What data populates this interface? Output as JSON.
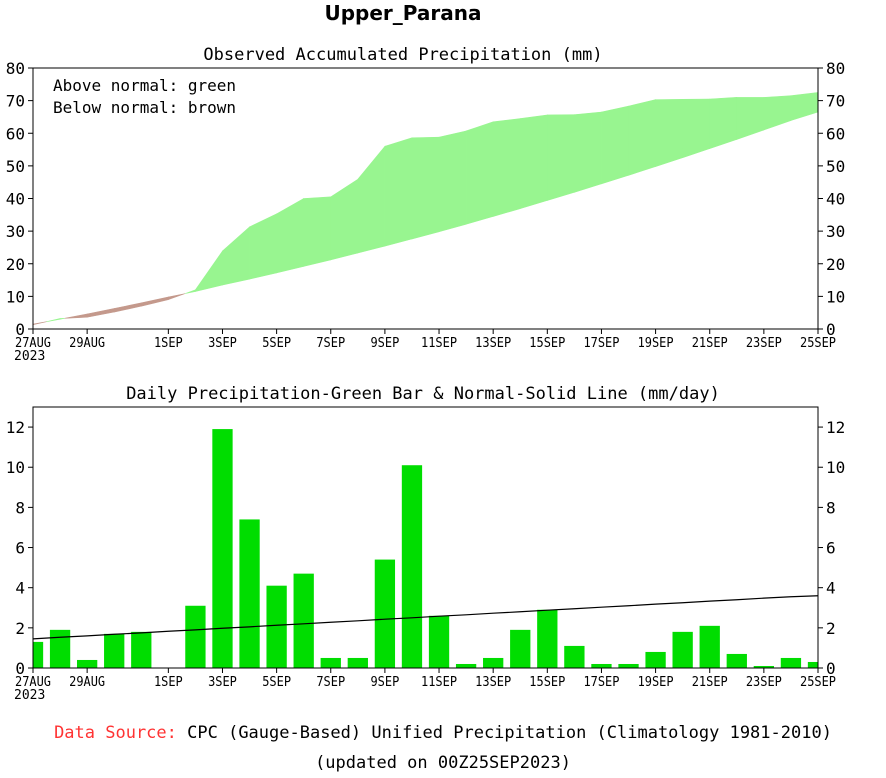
{
  "figure_title": "Upper_Parana",
  "footer": {
    "source_label": "Data Source:",
    "source_text": "CPC (Gauge-Based) Unified Precipitation (Climatology 1981-2010)",
    "updated": "(updated on 00Z25SEP2023)"
  },
  "colors": {
    "above": "#98f590",
    "below": "#c4998c",
    "bar": "#00dd00",
    "line": "#000000",
    "source_label": "#ff3333"
  },
  "chart_data": [
    {
      "type": "area",
      "title": "Observed Accumulated Precipitation (mm)",
      "legend_lines": [
        "Above normal: green",
        "Below normal: brown"
      ],
      "xlabel": "",
      "ylabel": "",
      "ylim": [
        0,
        80
      ],
      "yticks": [
        0,
        10,
        20,
        30,
        40,
        50,
        60,
        70,
        80
      ],
      "x_start_label_year": "2023",
      "xtick_labels": [
        "27AUG",
        "29AUG",
        "1SEP",
        "3SEP",
        "5SEP",
        "7SEP",
        "9SEP",
        "11SEP",
        "13SEP",
        "15SEP",
        "17SEP",
        "19SEP",
        "21SEP",
        "23SEP",
        "25SEP"
      ],
      "xtick_day_index": [
        0,
        2,
        5,
        7,
        9,
        11,
        13,
        15,
        17,
        19,
        21,
        23,
        25,
        27,
        29
      ],
      "day_index": [
        0,
        1,
        2,
        3,
        4,
        5,
        6,
        7,
        8,
        9,
        10,
        11,
        12,
        13,
        14,
        15,
        16,
        17,
        18,
        19,
        20,
        21,
        22,
        23,
        24,
        25,
        26,
        27,
        28,
        29
      ],
      "series": [
        {
          "name": "Observed",
          "values": [
            1.3,
            3.2,
            3.6,
            5.2,
            7.0,
            9.0,
            12.0,
            23.9,
            31.3,
            35.3,
            40.0,
            40.5,
            45.9,
            56.0,
            58.6,
            58.8,
            60.7,
            63.5,
            64.5,
            65.6,
            65.7,
            66.5,
            68.3,
            70.3,
            70.4,
            70.5,
            71.0,
            71.0,
            71.5,
            72.5
          ]
        },
        {
          "name": "Normal",
          "values": [
            1.5,
            3.0,
            4.6,
            6.3,
            8.0,
            9.8,
            11.5,
            13.5,
            15.3,
            17.2,
            19.2,
            21.2,
            23.3,
            25.4,
            27.6,
            29.8,
            32.1,
            34.5,
            36.9,
            39.4,
            41.9,
            44.5,
            47.1,
            49.8,
            52.5,
            55.3,
            58.1,
            61.0,
            63.9,
            66.5
          ]
        }
      ]
    },
    {
      "type": "bar",
      "title": "Daily Precipitation-Green Bar & Normal-Solid Line (mm/day)",
      "xlabel": "",
      "ylabel": "",
      "ylim": [
        0,
        13
      ],
      "yticks": [
        0,
        2,
        4,
        6,
        8,
        10,
        12
      ],
      "x_start_label_year": "2023",
      "xtick_labels": [
        "27AUG",
        "29AUG",
        "1SEP",
        "3SEP",
        "5SEP",
        "7SEP",
        "9SEP",
        "11SEP",
        "13SEP",
        "15SEP",
        "17SEP",
        "19SEP",
        "21SEP",
        "23SEP",
        "25SEP"
      ],
      "xtick_day_index": [
        0,
        2,
        5,
        7,
        9,
        11,
        13,
        15,
        17,
        19,
        21,
        23,
        25,
        27,
        29
      ],
      "day_index": [
        0,
        1,
        2,
        3,
        4,
        5,
        6,
        7,
        8,
        9,
        10,
        11,
        12,
        13,
        14,
        15,
        16,
        17,
        18,
        19,
        20,
        21,
        22,
        23,
        24,
        25,
        26,
        27,
        28,
        29
      ],
      "series": [
        {
          "name": "Daily",
          "values": [
            1.3,
            1.9,
            0.4,
            1.7,
            1.8,
            0,
            3.1,
            11.9,
            7.4,
            4.1,
            4.7,
            0.5,
            0.5,
            5.4,
            10.1,
            2.6,
            0.2,
            0.5,
            1.9,
            2.9,
            1.1,
            0.2,
            0.2,
            0.8,
            1.8,
            2.1,
            0.7,
            0.1,
            0.5,
            0.3
          ]
        },
        {
          "name": "Normal",
          "values": [
            1.45,
            1.53,
            1.6,
            1.68,
            1.75,
            1.83,
            1.9,
            1.98,
            2.05,
            2.13,
            2.2,
            2.28,
            2.35,
            2.43,
            2.5,
            2.58,
            2.65,
            2.73,
            2.8,
            2.88,
            2.95,
            3.03,
            3.1,
            3.18,
            3.25,
            3.33,
            3.4,
            3.48,
            3.55,
            3.6
          ]
        }
      ]
    }
  ]
}
